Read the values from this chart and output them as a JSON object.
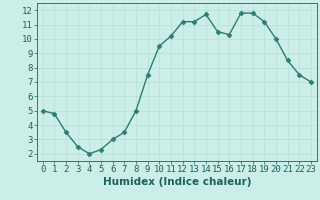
{
  "x": [
    0,
    1,
    2,
    3,
    4,
    5,
    6,
    7,
    8,
    9,
    10,
    11,
    12,
    13,
    14,
    15,
    16,
    17,
    18,
    19,
    20,
    21,
    22,
    23
  ],
  "y": [
    5.0,
    4.8,
    3.5,
    2.5,
    2.0,
    2.3,
    3.0,
    3.5,
    5.0,
    7.5,
    9.5,
    10.2,
    11.2,
    11.2,
    11.7,
    10.5,
    10.3,
    11.8,
    11.8,
    11.2,
    10.0,
    8.5,
    7.5,
    7.0
  ],
  "line_color": "#2e7d6e",
  "marker": "D",
  "marker_size": 2.5,
  "bg_color": "#cceee8",
  "grid_color": "#b8ddd8",
  "xlabel": "Humidex (Indice chaleur)",
  "xlim": [
    -0.5,
    23.5
  ],
  "ylim": [
    1.5,
    12.5
  ],
  "yticks": [
    2,
    3,
    4,
    5,
    6,
    7,
    8,
    9,
    10,
    11,
    12
  ],
  "xticks": [
    0,
    1,
    2,
    3,
    4,
    5,
    6,
    7,
    8,
    9,
    10,
    11,
    12,
    13,
    14,
    15,
    16,
    17,
    18,
    19,
    20,
    21,
    22,
    23
  ],
  "tick_fontsize": 6.5,
  "xlabel_fontsize": 7.5,
  "axis_color": "#1a6358",
  "linewidth": 1.0
}
